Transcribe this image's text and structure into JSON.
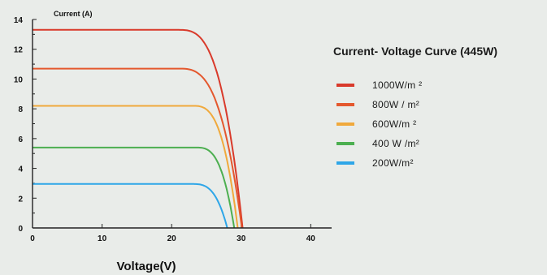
{
  "chart_data": {
    "type": "line",
    "title": "Current-  Voltage Curve  (445W)",
    "ylabel": "Current (A)",
    "xlabel": "Voltage(V)",
    "xlim": [
      0,
      43
    ],
    "ylim": [
      0,
      14
    ],
    "x_ticks": [
      "0",
      "10",
      "20",
      "30",
      "40"
    ],
    "y_ticks": [
      "0",
      "2",
      "4",
      "6",
      "8",
      "10",
      "12",
      "14"
    ],
    "legend_position": "right",
    "series": [
      {
        "name": "1000W/m  ²",
        "color": "#d93a2b",
        "isc": 13.3,
        "knee_v": 21,
        "voc": 30.2
      },
      {
        "name": "800W  / m²",
        "color": "#e4582e",
        "isc": 10.7,
        "knee_v": 21,
        "voc": 30.1
      },
      {
        "name": "600W/m  ²",
        "color": "#f0a93c",
        "isc": 8.2,
        "knee_v": 23,
        "voc": 29.5
      },
      {
        "name": "400 W /m²",
        "color": "#4caf50",
        "isc": 5.4,
        "knee_v": 23.5,
        "voc": 29
      },
      {
        "name": "200W/m²",
        "color": "#2ea6e8",
        "isc": 2.95,
        "knee_v": 23,
        "voc": 28
      }
    ]
  }
}
